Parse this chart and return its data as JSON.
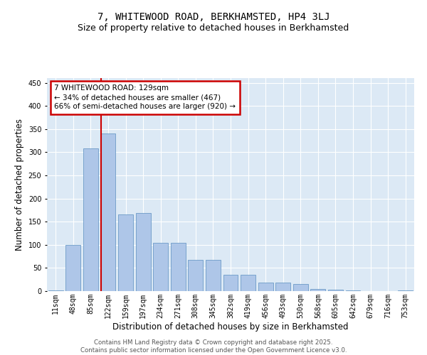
{
  "title_line1": "7, WHITEWOOD ROAD, BERKHAMSTED, HP4 3LJ",
  "title_line2": "Size of property relative to detached houses in Berkhamsted",
  "xlabel": "Distribution of detached houses by size in Berkhamsted",
  "ylabel": "Number of detached properties",
  "bar_labels": [
    "11sqm",
    "48sqm",
    "85sqm",
    "122sqm",
    "159sqm",
    "197sqm",
    "234sqm",
    "271sqm",
    "308sqm",
    "345sqm",
    "382sqm",
    "419sqm",
    "456sqm",
    "493sqm",
    "530sqm",
    "568sqm",
    "605sqm",
    "642sqm",
    "679sqm",
    "716sqm",
    "753sqm"
  ],
  "bar_values": [
    2,
    100,
    308,
    340,
    165,
    168,
    105,
    105,
    68,
    68,
    35,
    35,
    18,
    18,
    15,
    5,
    3,
    1,
    0,
    0,
    1
  ],
  "bar_color": "#aec6e8",
  "bar_edge_color": "#5a8fc0",
  "vline_index": 3,
  "annotation_text": "7 WHITEWOOD ROAD: 129sqm\n← 34% of detached houses are smaller (467)\n66% of semi-detached houses are larger (920) →",
  "annotation_box_color": "#ffffff",
  "annotation_box_edge": "#cc0000",
  "vline_color": "#cc0000",
  "ylim": [
    0,
    460
  ],
  "yticks": [
    0,
    50,
    100,
    150,
    200,
    250,
    300,
    350,
    400,
    450
  ],
  "background_color": "#dce9f5",
  "footer_text": "Contains HM Land Registry data © Crown copyright and database right 2025.\nContains public sector information licensed under the Open Government Licence v3.0.",
  "title_fontsize": 10,
  "subtitle_fontsize": 9,
  "tick_fontsize": 7,
  "label_fontsize": 8.5,
  "annot_fontsize": 7.5
}
